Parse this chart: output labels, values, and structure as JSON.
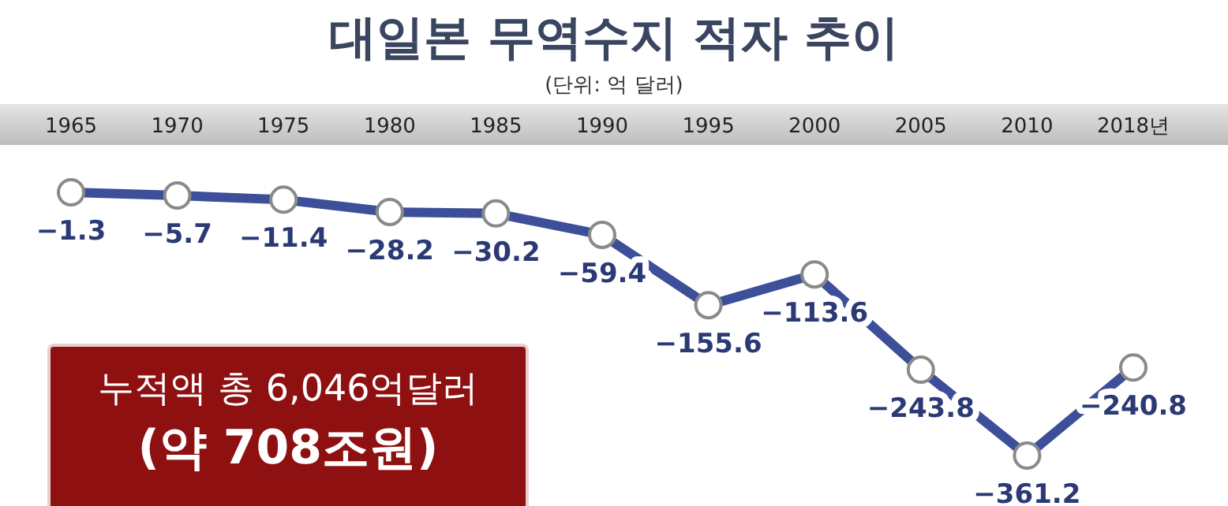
{
  "chart_data": {
    "type": "line",
    "title": "대일본 무역수지 적자 추이",
    "subtitle": "(단위: 억 달러)",
    "categories": [
      "1965",
      "1970",
      "1975",
      "1980",
      "1985",
      "1990",
      "1995",
      "2000",
      "2005",
      "2010",
      "2018년"
    ],
    "series": [
      {
        "color": "#3d4f99",
        "values": [
          -1.3,
          -5.7,
          -11.4,
          -28.2,
          -30.2,
          -59.4,
          -155.6,
          -113.6,
          -243.8,
          -361.2,
          -240.8
        ],
        "value_labels": [
          "−1.3",
          "−5.7",
          "−11.4",
          "−28.2",
          "−30.2",
          "−59.4",
          "−155.6",
          "−113.6",
          "−243.8",
          "−361.2",
          "−240.8"
        ]
      }
    ],
    "marker": "circle",
    "line_style": "solid",
    "annotations": [
      "누적액 총 6,046억달러",
      "(약 708조원)"
    ]
  }
}
